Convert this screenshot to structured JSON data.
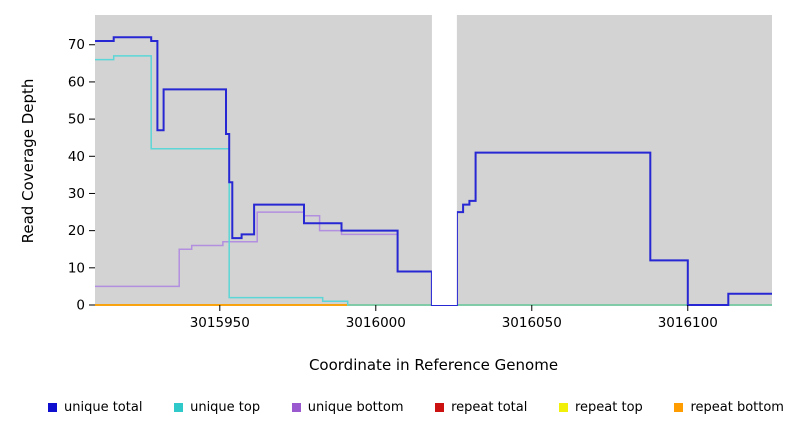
{
  "chart_data": {
    "type": "line",
    "step": true,
    "title": "",
    "xlabel": "Coordinate in Reference Genome",
    "ylabel": "Read Coverage Depth",
    "xlim": [
      3015910,
      3016127
    ],
    "ylim": [
      0,
      78
    ],
    "x_ticks": [
      3015950,
      3016000,
      3016050,
      3016100
    ],
    "y_ticks": [
      0,
      10,
      20,
      30,
      40,
      50,
      60,
      70
    ],
    "plot_background": "#d3d3d3",
    "figure_background": "#ffffff",
    "grid": false,
    "legend_position": "bottom",
    "gap_region": [
      3016018,
      3016026
    ],
    "series": [
      {
        "name": "repeat total",
        "color": "#cc1111",
        "width": 1.5,
        "points": [
          [
            3015910,
            0
          ],
          [
            3016127,
            0
          ]
        ]
      },
      {
        "name": "repeat top",
        "color": "#f0f00a",
        "width": 1.5,
        "points": [
          [
            3015910,
            0
          ],
          [
            3016127,
            0
          ]
        ]
      },
      {
        "name": "repeat bottom",
        "color": "#ff9d00",
        "width": 1.5,
        "points": [
          [
            3015910,
            0
          ],
          [
            3016127,
            0
          ]
        ]
      },
      {
        "name": "unique bottom",
        "color": "#b38fe0",
        "width": 1.5,
        "points": [
          [
            3015910,
            5
          ],
          [
            3015937,
            15
          ],
          [
            3015941,
            16
          ],
          [
            3015951,
            17
          ],
          [
            3015962,
            25
          ],
          [
            3015977,
            24
          ],
          [
            3015982,
            20
          ],
          [
            3015989,
            19
          ],
          [
            3016007,
            9
          ],
          [
            3016018,
            0
          ],
          [
            3016026,
            25
          ],
          [
            3016028,
            27
          ],
          [
            3016030,
            28
          ],
          [
            3016032,
            41
          ],
          [
            3016088,
            12
          ],
          [
            3016100,
            0
          ],
          [
            3016113,
            3
          ],
          [
            3016127,
            3
          ]
        ]
      },
      {
        "name": "unique top",
        "color": "#5cd6d6",
        "width": 1.5,
        "points": [
          [
            3015910,
            66
          ],
          [
            3015916,
            67
          ],
          [
            3015928,
            42
          ],
          [
            3015953,
            2
          ],
          [
            3015983,
            1
          ],
          [
            3015991,
            0
          ],
          [
            3016127,
            0
          ]
        ]
      },
      {
        "name": "unique total",
        "color": "#2727d3",
        "width": 2,
        "points": [
          [
            3015910,
            71
          ],
          [
            3015916,
            72
          ],
          [
            3015928,
            71
          ],
          [
            3015930,
            47
          ],
          [
            3015932,
            58
          ],
          [
            3015952,
            46
          ],
          [
            3015953,
            33
          ],
          [
            3015954,
            18
          ],
          [
            3015957,
            19
          ],
          [
            3015961,
            27
          ],
          [
            3015977,
            22
          ],
          [
            3015989,
            20
          ],
          [
            3016007,
            9
          ],
          [
            3016018,
            0
          ],
          [
            3016026,
            25
          ],
          [
            3016028,
            27
          ],
          [
            3016030,
            28
          ],
          [
            3016032,
            41
          ],
          [
            3016088,
            12
          ],
          [
            3016100,
            0
          ],
          [
            3016113,
            3
          ],
          [
            3016127,
            3
          ]
        ]
      }
    ]
  },
  "legend": {
    "items": [
      {
        "label": "unique total",
        "color": "#0f0fcf"
      },
      {
        "label": "unique top",
        "color": "#2fc9c9"
      },
      {
        "label": "unique bottom",
        "color": "#9b59d0"
      },
      {
        "label": "repeat total",
        "color": "#cc1111"
      },
      {
        "label": "repeat top",
        "color": "#f0f00a"
      },
      {
        "label": "repeat bottom",
        "color": "#ff9d00"
      }
    ]
  }
}
